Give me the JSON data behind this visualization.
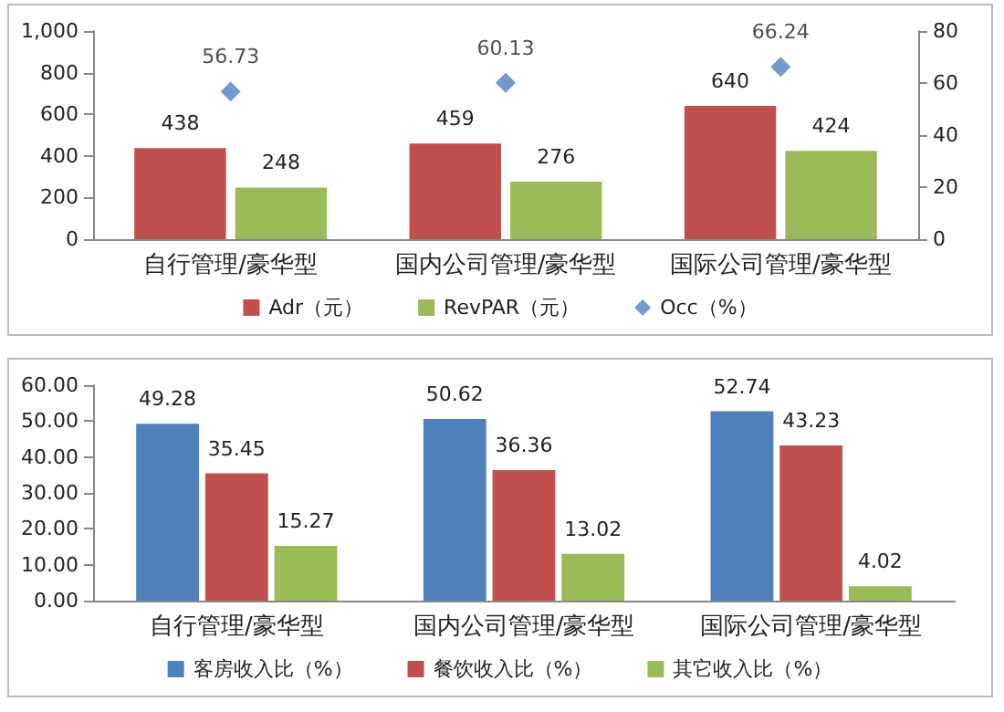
{
  "chart_data": [
    {
      "type": "bar",
      "categories": [
        "自行管理/豪华型",
        "国内公司管理/豪华型",
        "国际公司管理/豪华型"
      ],
      "series": [
        {
          "name": "Adr（元）",
          "color": "#c0504d",
          "values": [
            438,
            459,
            640
          ]
        },
        {
          "name": "RevPAR（元）",
          "color": "#9bbb59",
          "values": [
            248,
            276,
            424
          ]
        },
        {
          "name": "Occ（%）",
          "color": "#4f81bd",
          "type": "scatter",
          "axis": "y2",
          "x": [
            "自行管理/豪华型",
            "国内公司管理/豪华型",
            "国际公司管理/豪华型"
          ],
          "values": [
            56.73,
            60.13,
            66.24
          ]
        }
      ],
      "ylim": [
        0,
        1000
      ],
      "yticks": [
        0,
        200,
        400,
        600,
        800,
        {
          "value": 1000,
          "label": "1,000"
        }
      ],
      "y2lim": [
        0,
        80
      ],
      "y2ticks": [
        0,
        20,
        40,
        60,
        80
      ],
      "marker": "diamond",
      "data_labels": true,
      "legend": "bottom",
      "grid": false
    },
    {
      "type": "bar",
      "categories": [
        "自行管理/豪华型",
        "国内公司管理/豪华型",
        "国际公司管理/豪华型"
      ],
      "series": [
        {
          "name": "客房收入比（%）",
          "color": "#4f81bd",
          "values": [
            49.28,
            50.62,
            52.74
          ]
        },
        {
          "name": "餐饮收入比（%）",
          "color": "#c0504d",
          "values": [
            35.45,
            36.36,
            43.23
          ]
        },
        {
          "name": "其它收入比（%）",
          "color": "#9bbb59",
          "values": [
            15.27,
            13.02,
            4.02
          ]
        }
      ],
      "ylim": [
        0,
        60
      ],
      "yticks": [
        {
          "value": 0,
          "label": "0.00"
        },
        {
          "value": 10,
          "label": "10.00"
        },
        {
          "value": 20,
          "label": "20.00"
        },
        {
          "value": 30,
          "label": "30.00"
        },
        {
          "value": 40,
          "label": "40.00"
        },
        {
          "value": 50,
          "label": "50.00"
        },
        {
          "value": 60,
          "label": "60.00"
        }
      ],
      "data_labels": true,
      "legend": "bottom",
      "grid": false
    }
  ]
}
